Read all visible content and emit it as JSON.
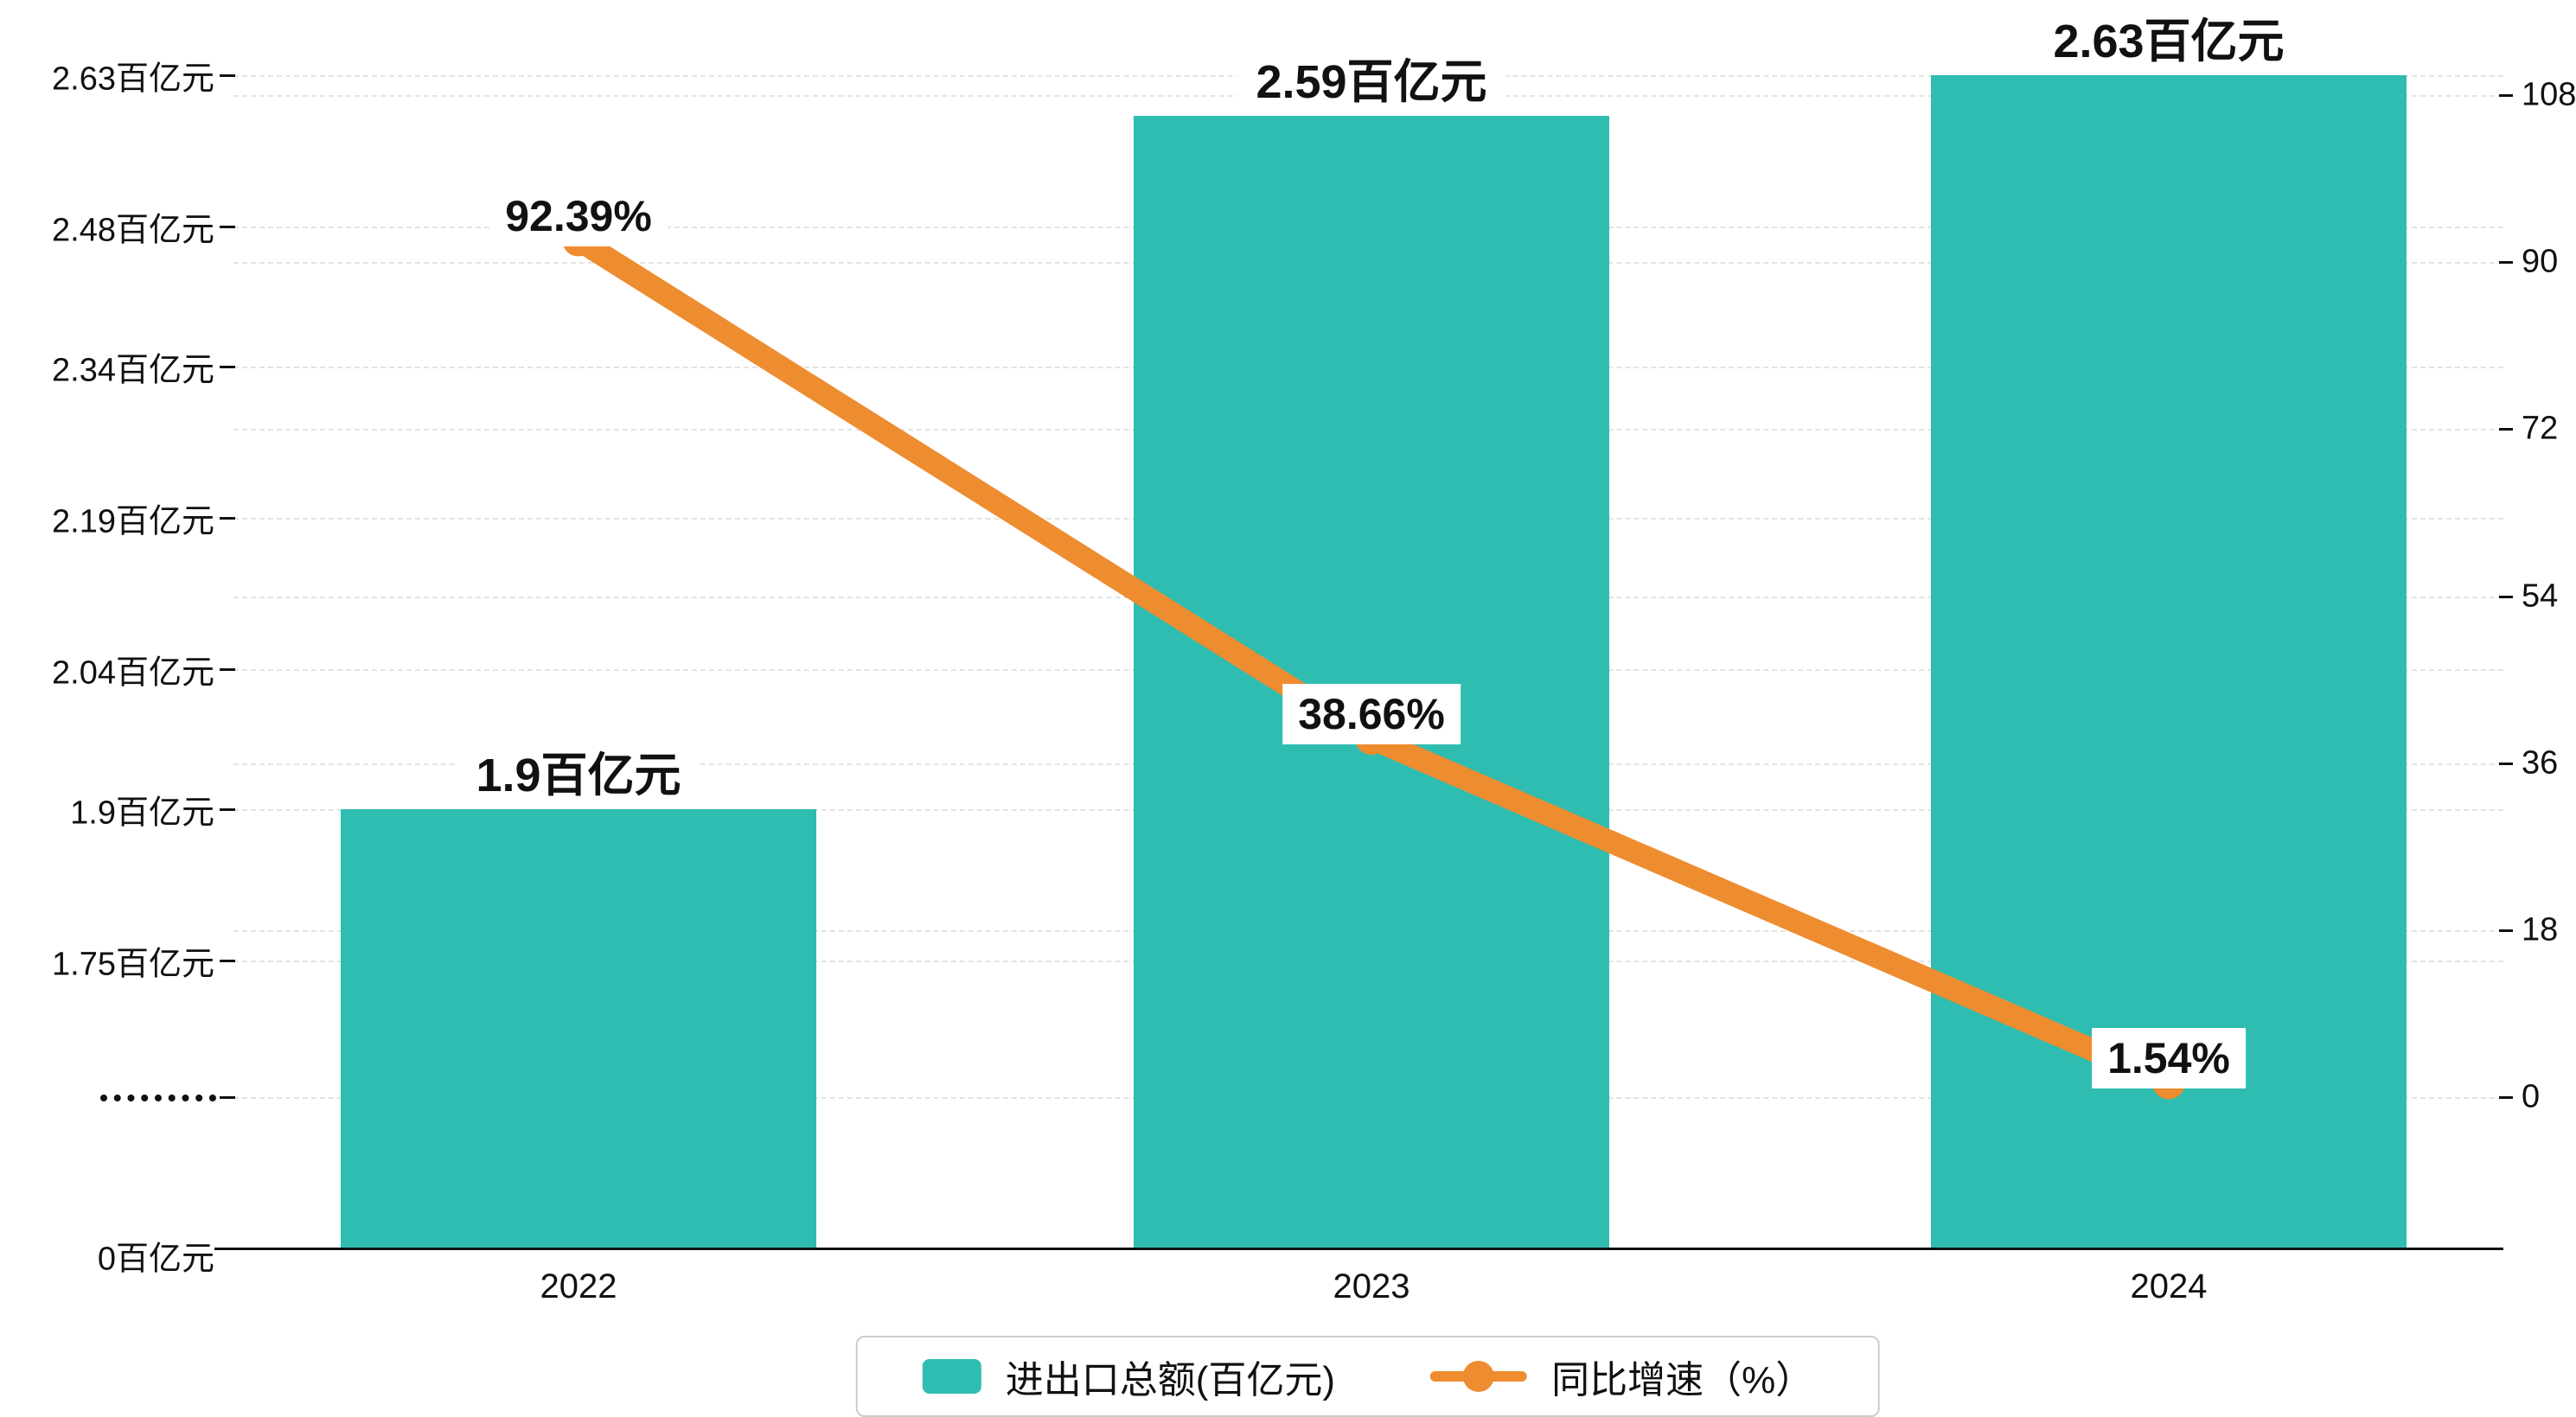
{
  "chart_data": {
    "type": "bar",
    "subtype": "bar-line-combo",
    "categories": [
      "2022",
      "2023",
      "2024"
    ],
    "series": [
      {
        "name": "进出口总额(百亿元)",
        "type": "bar",
        "axis": "left",
        "values": [
          1.9,
          2.59,
          2.63
        ],
        "data_labels": [
          "1.9百亿元",
          "2.59百亿元",
          "2.63百亿元"
        ],
        "color": "#2ebdb0"
      },
      {
        "name": "同比增速（%）",
        "type": "line",
        "axis": "right",
        "values": [
          92.39,
          38.66,
          1.54
        ],
        "data_labels": [
          "92.39%",
          "38.66%",
          "1.54%"
        ],
        "color": "#ee8c30"
      }
    ],
    "left_axis": {
      "tick_labels": [
        "2.63百亿元",
        "2.48百亿元",
        "2.34百亿元",
        "2.19百亿元",
        "2.04百亿元",
        "1.9百亿元",
        "1.75百亿元"
      ],
      "tick_values": [
        2.63,
        2.48,
        2.34,
        2.19,
        2.04,
        1.9,
        1.75
      ],
      "zero_label": "0百亿元",
      "axis_break": true,
      "break_marker": "·········"
    },
    "right_axis": {
      "tick_labels": [
        "108",
        "90",
        "72",
        "54",
        "36",
        "18",
        "0"
      ],
      "tick_values": [
        108,
        90,
        72,
        54,
        36,
        18,
        0
      ],
      "min": 0,
      "max": 108
    },
    "grid": {
      "style": "dashed",
      "color": "#e3e3e3"
    },
    "legend_position": "bottom-center",
    "background": "#ffffff"
  },
  "legend": {
    "items": [
      {
        "label": "进出口总额(百亿元)",
        "marker": "bar-swatch",
        "color": "#2ebdb0"
      },
      {
        "label": "同比增速（%）",
        "marker": "line-dot",
        "color": "#ee8c30"
      }
    ]
  },
  "colors": {
    "bar": "#2ebdb0",
    "line": "#ee8c30",
    "axis_text": "#111111",
    "grid": "#e3e3e3",
    "label_background": "#ffffff",
    "legend_border": "#cccccc"
  }
}
